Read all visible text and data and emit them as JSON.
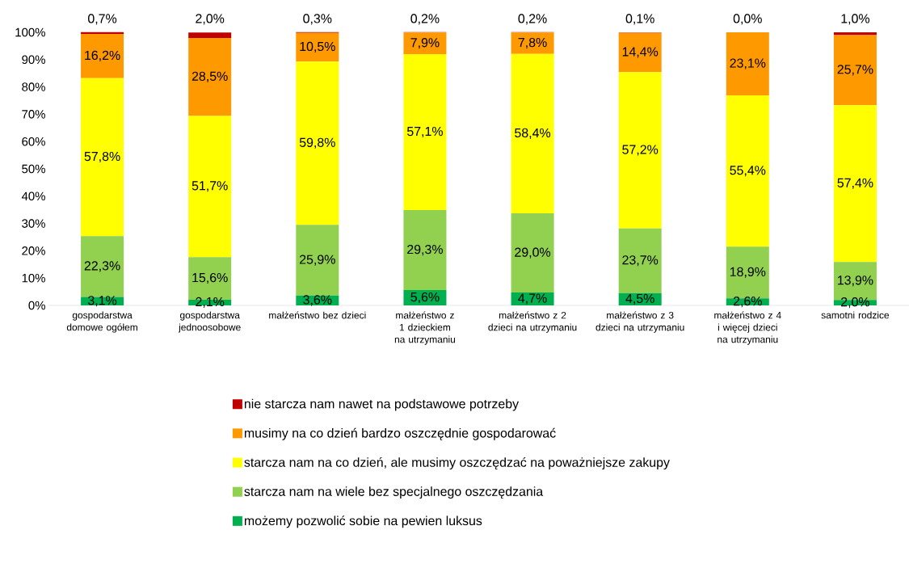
{
  "chart_data": {
    "type": "bar",
    "stacked": true,
    "categories": [
      "gospodarstwa domowe ogółem",
      "gospodarstwa jednoosobowe",
      "małżeństwo bez dzieci",
      "małżeństwo z 1 dzieckiem na utrzymaniu",
      "małżeństwo z 2 dzieci na utrzymaniu",
      "małżeństwo z 3 dzieci na utrzymaniu",
      "małżeństwo z 4 i więcej dzieci na utrzymaniu",
      "samotni rodzice"
    ],
    "series": [
      {
        "name": "możemy pozwolić sobie na pewien luksus",
        "color": "#00b050",
        "values": [
          3.1,
          2.1,
          3.6,
          5.6,
          4.7,
          4.5,
          2.6,
          2.0
        ],
        "value_labels": [
          "3,1%",
          "2,1%",
          "3,6%",
          "5,6%",
          "4,7%",
          "4,5%",
          "2,6%",
          "2,0%"
        ]
      },
      {
        "name": "starcza nam na wiele bez specjalnego oszczędzania",
        "color": "#92d050",
        "values": [
          22.3,
          15.6,
          25.9,
          29.3,
          29.0,
          23.7,
          18.9,
          13.9
        ],
        "value_labels": [
          "22,3%",
          "15,6%",
          "25,9%",
          "29,3%",
          "29,0%",
          "23,7%",
          "18,9%",
          "13,9%"
        ]
      },
      {
        "name": "starcza nam na co dzień, ale musimy oszczędzać na poważniejsze zakupy",
        "color": "#ffff00",
        "values": [
          57.8,
          51.7,
          59.8,
          57.1,
          58.4,
          57.2,
          55.4,
          57.4
        ],
        "value_labels": [
          "57,8%",
          "51,7%",
          "59,8%",
          "57,1%",
          "58,4%",
          "57,2%",
          "55,4%",
          "57,4%"
        ]
      },
      {
        "name": "musimy na co dzień bardzo oszczędnie gospodarować",
        "color": "#ff9900",
        "values": [
          16.2,
          28.5,
          10.5,
          7.9,
          7.8,
          14.4,
          23.1,
          25.7
        ],
        "value_labels": [
          "16,2%",
          "28,5%",
          "10,5%",
          "7,9%",
          "7,8%",
          "14,4%",
          "23,1%",
          "25,7%"
        ]
      },
      {
        "name": "nie starcza nam nawet na podstawowe potrzeby",
        "color": "#c00000",
        "values": [
          0.7,
          2.0,
          0.3,
          0.2,
          0.2,
          0.1,
          0.0,
          1.0
        ],
        "value_labels": [
          "0,7%",
          "2,0%",
          "0,3%",
          "0,2%",
          "0,2%",
          "0,1%",
          "0,0%",
          "1,0%"
        ]
      }
    ],
    "ylim": [
      0,
      100
    ],
    "yticks": [
      {
        "value": 0,
        "label": "0%"
      },
      {
        "value": 10,
        "label": "10%"
      },
      {
        "value": 20,
        "label": "20%"
      },
      {
        "value": 30,
        "label": "30%"
      },
      {
        "value": 40,
        "label": "40%"
      },
      {
        "value": 50,
        "label": "50%"
      },
      {
        "value": 60,
        "label": "60%"
      },
      {
        "value": 70,
        "label": "70%"
      },
      {
        "value": 80,
        "label": "80%"
      },
      {
        "value": 90,
        "label": "90%"
      },
      {
        "value": 100,
        "label": "100%"
      }
    ],
    "legend": "bottom"
  }
}
